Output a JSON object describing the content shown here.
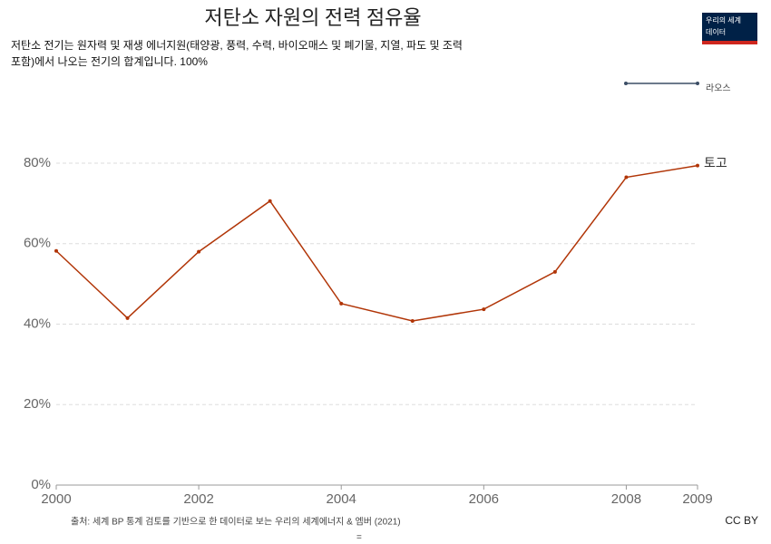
{
  "chart_data": {
    "type": "line",
    "title": "저탄소 자원의 전력 점유율",
    "subtitle_lines": [
      "저탄소 전기는 원자력 및 재생 에너지원(태양광, 풍력, 수력, 바이오매스 및 폐기물, 지열, 파도 및 조력",
      "포함)에서 나오는 전기의 합계입니다. 100%"
    ],
    "logo": [
      "우리의 세계",
      "데이터"
    ],
    "x": [
      2000,
      2001,
      2002,
      2003,
      2004,
      2005,
      2006,
      2007,
      2008,
      2009
    ],
    "xlim": [
      2000,
      2009
    ],
    "xticks": [
      2000,
      2002,
      2004,
      2006,
      2008,
      2009
    ],
    "ylim": [
      0,
      80
    ],
    "yticks": [
      {
        "value": 0,
        "label": "0%"
      },
      {
        "value": 20,
        "label": "20%"
      },
      {
        "value": 40,
        "label": "40%"
      },
      {
        "value": 60,
        "label": "60%"
      },
      {
        "value": 80,
        "label": "80%"
      }
    ],
    "grid": true,
    "series": [
      {
        "name": "토고",
        "color": "#b13507",
        "values": [
          58.2,
          41.5,
          58,
          70.6,
          45.1,
          40.8,
          43.7,
          53,
          76.5,
          79.4
        ]
      },
      {
        "name": "라오스",
        "color": "#3c4e66",
        "values": [
          null,
          null,
          null,
          null,
          null,
          null,
          null,
          null,
          null,
          null
        ]
      }
    ],
    "source": "출처: 세계 BP 통계 검토를 기반으로 한 데이터로 보는 우리의 세계에너지 & 엠버 (2021)",
    "source_mark": "=",
    "license": "CC BY"
  }
}
